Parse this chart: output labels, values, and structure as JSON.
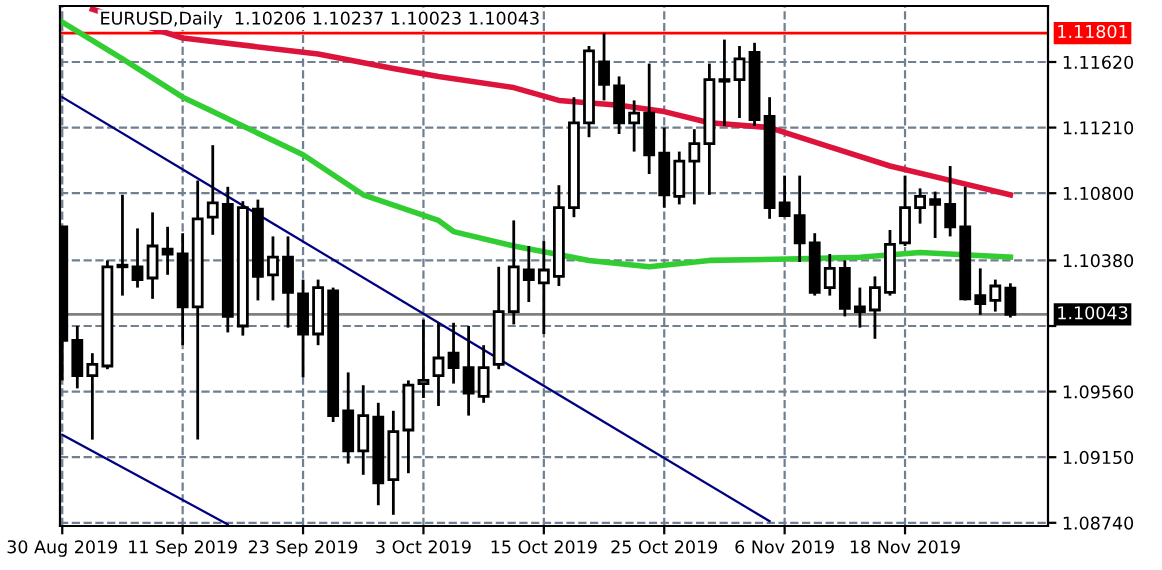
{
  "chart_data": {
    "type": "candlestick",
    "title": "EURUSD,Daily  1.10206 1.10237 1.10023 1.10043",
    "categories": [
      "30 Aug 2019",
      null,
      null,
      null,
      null,
      null,
      null,
      null,
      "11 Sep 2019",
      null,
      null,
      null,
      null,
      null,
      null,
      null,
      "23 Sep 2019",
      null,
      null,
      null,
      null,
      null,
      null,
      null,
      "3 Oct 2019",
      null,
      null,
      null,
      null,
      null,
      null,
      null,
      "15 Oct 2019",
      null,
      null,
      null,
      null,
      null,
      null,
      null,
      "25 Oct 2019",
      null,
      null,
      null,
      null,
      null,
      null,
      null,
      "6 Nov 2019",
      null,
      null,
      null,
      null,
      null,
      null,
      null,
      "18 Nov 2019",
      null,
      null,
      null,
      null,
      null,
      null,
      null
    ],
    "ohlc": [
      [
        1.1059,
        1.1059,
        1.0963,
        1.0988
      ],
      [
        1.0988,
        1.0997,
        1.0958,
        1.0966
      ],
      [
        1.0966,
        1.098,
        1.0926,
        1.0973
      ],
      [
        1.0972,
        1.1038,
        1.097,
        1.1034
      ],
      [
        1.1034,
        1.1079,
        1.1016,
        1.1035
      ],
      [
        1.1034,
        1.1058,
        1.1021,
        1.1026
      ],
      [
        1.1027,
        1.1068,
        1.1014,
        1.1047
      ],
      [
        1.1045,
        1.1059,
        1.1029,
        1.1042
      ],
      [
        1.1042,
        1.1055,
        1.0985,
        1.1009
      ],
      [
        1.1009,
        1.1088,
        1.0926,
        1.1064
      ],
      [
        1.1065,
        1.111,
        1.1054,
        1.1074
      ],
      [
        1.1073,
        1.1084,
        1.0993,
        1.1003
      ],
      [
        1.0997,
        1.1075,
        1.0991,
        1.1071
      ],
      [
        1.107,
        1.1076,
        1.1013,
        1.1028
      ],
      [
        1.1029,
        1.1053,
        1.1013,
        1.104
      ],
      [
        1.104,
        1.1053,
        1.0996,
        1.1018
      ],
      [
        1.1017,
        1.1026,
        1.0965,
        1.0992
      ],
      [
        1.0992,
        1.1026,
        1.0985,
        1.1021
      ],
      [
        1.1019,
        1.1021,
        1.0937,
        1.0941
      ],
      [
        1.0944,
        1.0968,
        1.0911,
        1.0919
      ],
      [
        1.0919,
        1.096,
        1.0904,
        1.0941
      ],
      [
        1.094,
        1.0949,
        1.0885,
        1.0899
      ],
      [
        1.0901,
        1.0944,
        1.0879,
        1.0931
      ],
      [
        1.0932,
        1.0963,
        1.0905,
        1.096
      ],
      [
        1.0961,
        1.1001,
        1.0952,
        1.0963
      ],
      [
        1.0966,
        1.0999,
        1.0947,
        1.0977
      ],
      [
        1.098,
        1.0999,
        1.0961,
        1.0971
      ],
      [
        1.0971,
        1.0997,
        1.0941,
        1.0955
      ],
      [
        1.0953,
        1.0985,
        1.0949,
        1.0971
      ],
      [
        1.0973,
        1.1034,
        1.097,
        1.1006
      ],
      [
        1.1006,
        1.1063,
        1.0998,
        1.1034
      ],
      [
        1.1032,
        1.1047,
        1.1012,
        1.1026
      ],
      [
        1.1024,
        1.105,
        1.0992,
        1.1032
      ],
      [
        1.1028,
        1.1085,
        1.1022,
        1.1071
      ],
      [
        1.1071,
        1.114,
        1.1065,
        1.1124
      ],
      [
        1.1124,
        1.1172,
        1.1115,
        1.1169
      ],
      [
        1.1162,
        1.118,
        1.1138,
        1.1148
      ],
      [
        1.1147,
        1.1153,
        1.1117,
        1.1124
      ],
      [
        1.1124,
        1.1138,
        1.1106,
        1.113
      ],
      [
        1.113,
        1.1161,
        1.1092,
        1.1104
      ],
      [
        1.1105,
        1.1121,
        1.1071,
        1.1079
      ],
      [
        1.1078,
        1.1106,
        1.1073,
        1.11
      ],
      [
        1.11,
        1.112,
        1.1073,
        1.1111
      ],
      [
        1.1111,
        1.1161,
        1.1079,
        1.1151
      ],
      [
        1.1151,
        1.1176,
        1.1122,
        1.115
      ],
      [
        1.1151,
        1.1172,
        1.1127,
        1.1164
      ],
      [
        1.1168,
        1.1174,
        1.1122,
        1.1126
      ],
      [
        1.1128,
        1.114,
        1.1064,
        1.1071
      ],
      [
        1.1074,
        1.1091,
        1.1065,
        1.1066
      ],
      [
        1.1066,
        1.1091,
        1.1037,
        1.1049
      ],
      [
        1.1049,
        1.1055,
        1.1016,
        1.1018
      ],
      [
        1.1021,
        1.1042,
        1.1016,
        1.1033
      ],
      [
        1.1033,
        1.1038,
        1.1003,
        1.1008
      ],
      [
        1.1009,
        1.1021,
        1.0996,
        1.1006
      ],
      [
        1.1007,
        1.1028,
        1.0989,
        1.1021
      ],
      [
        1.1018,
        1.1057,
        1.1016,
        1.1048
      ],
      [
        1.1049,
        1.1091,
        1.1047,
        1.1071
      ],
      [
        1.1071,
        1.1083,
        1.1061,
        1.1078
      ],
      [
        1.1076,
        1.1081,
        1.1052,
        1.1073
      ],
      [
        1.1073,
        1.1097,
        1.1053,
        1.1059
      ],
      [
        1.1059,
        1.1084,
        1.1013,
        1.1014
      ],
      [
        1.1016,
        1.1033,
        1.1004,
        1.1011
      ],
      [
        1.1013,
        1.1026,
        1.1006,
        1.1022
      ],
      [
        1.10206,
        1.10237,
        1.10023,
        1.10043
      ]
    ],
    "series": [
      {
        "type": "line",
        "color": "#dc143c",
        "values": [
          null,
          null,
          1.1195,
          null,
          null,
          null,
          null,
          null,
          1.1177,
          null,
          null,
          null,
          null,
          null,
          null,
          null,
          null,
          1.1167,
          null,
          null,
          null,
          null,
          1.1158,
          null,
          null,
          1.1153,
          null,
          null,
          null,
          null,
          1.1146,
          null,
          null,
          1.1138,
          null,
          null,
          null,
          1.1135,
          null,
          null,
          1.1131,
          null,
          null,
          1.1124,
          null,
          null,
          null,
          1.1121,
          null,
          null,
          null,
          1.1109,
          null,
          null,
          null,
          1.1097,
          null,
          null,
          null,
          1.1088,
          null,
          null,
          null,
          1.1079
        ]
      },
      {
        "type": "line",
        "color": "#32cd32",
        "values": [
          1.1187,
          null,
          null,
          null,
          1.1164,
          null,
          null,
          null,
          1.114,
          null,
          1.1131,
          null,
          1.1122,
          null,
          null,
          null,
          1.1104,
          null,
          null,
          null,
          1.1079,
          null,
          null,
          null,
          null,
          1.1063,
          1.1056,
          null,
          null,
          null,
          1.1047,
          null,
          null,
          null,
          null,
          1.1038,
          null,
          null,
          null,
          1.1034,
          null,
          null,
          null,
          1.1038,
          null,
          null,
          null,
          null,
          null,
          1.1039,
          null,
          null,
          null,
          1.104,
          null,
          null,
          null,
          1.1043,
          null,
          null,
          null,
          null,
          null,
          1.104
        ]
      },
      {
        "type": "line",
        "color": "#000080",
        "values": [
          1.114,
          null,
          null,
          null,
          null,
          null,
          null,
          null,
          null,
          null,
          null,
          null,
          null,
          null,
          null,
          null,
          null,
          null,
          null,
          null,
          null,
          null,
          null,
          null,
          null,
          null,
          null,
          null,
          null,
          null,
          null,
          null,
          null,
          null,
          null,
          null,
          null,
          null,
          null,
          null,
          null,
          null,
          null,
          null,
          null,
          null,
          null,
          1.0875,
          null,
          null,
          null,
          null,
          null,
          null,
          null,
          null,
          null,
          null,
          null,
          null,
          null,
          null,
          null,
          null
        ]
      },
      {
        "type": "line",
        "color": "#000080",
        "values": [
          1.0929,
          null,
          null,
          null,
          null,
          null,
          null,
          null,
          null,
          null,
          null,
          1.0873,
          null,
          null,
          null,
          null,
          null,
          null,
          null,
          null,
          null,
          null,
          null,
          null,
          null,
          null,
          null,
          null,
          null,
          null,
          null,
          null,
          null,
          null,
          null,
          null,
          null,
          null,
          null,
          null,
          null,
          null,
          null,
          null,
          null,
          null,
          null,
          null,
          null,
          null,
          null,
          null,
          null,
          null,
          null,
          null,
          null,
          null,
          null,
          null,
          null,
          null,
          null,
          null
        ]
      }
    ],
    "ylim": [
      1.0872,
      1.1197
    ],
    "yticks": [
      {
        "value": 1.1162,
        "label": "1.11620"
      },
      {
        "value": 1.1121,
        "label": "1.11210"
      },
      {
        "value": 1.108,
        "label": "1.10800"
      },
      {
        "value": 1.1038,
        "label": "1.10380"
      },
      {
        "value": 1.0997,
        "label": null
      },
      {
        "value": 1.0956,
        "label": "1.09560"
      },
      {
        "value": 1.0915,
        "label": "1.09150"
      },
      {
        "value": 1.0874,
        "label": "1.08740"
      }
    ],
    "ref_lines": [
      {
        "axis": "y",
        "value": 1.11801,
        "label": "1.11801",
        "color": "#ff0000"
      },
      {
        "axis": "y",
        "value": 1.10043,
        "label": "1.10043",
        "color": "#808080"
      }
    ],
    "grid": true,
    "legend": false
  }
}
